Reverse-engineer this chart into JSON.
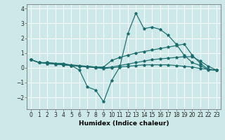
{
  "xlabel": "Humidex (Indice chaleur)",
  "xlim": [
    -0.5,
    23.5
  ],
  "ylim": [
    -2.8,
    4.3
  ],
  "xticks": [
    0,
    1,
    2,
    3,
    4,
    5,
    6,
    7,
    8,
    9,
    10,
    11,
    12,
    13,
    14,
    15,
    16,
    17,
    18,
    19,
    20,
    21,
    22,
    23
  ],
  "yticks": [
    -2,
    -1,
    0,
    1,
    2,
    3,
    4
  ],
  "bg_color": "#cce8e8",
  "line_color": "#1a6b6b",
  "grid_color": "#ffffff",
  "curves": [
    {
      "x": [
        0,
        1,
        2,
        3,
        4,
        5,
        6,
        7,
        8,
        9,
        10,
        11,
        12,
        13,
        14,
        15,
        16,
        17,
        18,
        19,
        20,
        21,
        22,
        23
      ],
      "y": [
        0.55,
        0.35,
        0.35,
        0.3,
        0.3,
        0.15,
        -0.15,
        -1.3,
        -1.5,
        -2.3,
        -0.85,
        0.05,
        2.3,
        3.7,
        2.65,
        2.75,
        2.6,
        2.2,
        1.6,
        0.85,
        0.35,
        0.15,
        -0.15,
        -0.15
      ]
    },
    {
      "x": [
        0,
        1,
        2,
        3,
        4,
        5,
        6,
        7,
        8,
        9,
        10,
        11,
        12,
        13,
        14,
        15,
        16,
        17,
        18,
        19,
        20,
        21,
        22,
        23
      ],
      "y": [
        0.55,
        0.35,
        0.35,
        0.3,
        0.25,
        0.2,
        0.15,
        0.1,
        0.05,
        0.05,
        0.5,
        0.7,
        0.85,
        1.0,
        1.1,
        1.2,
        1.3,
        1.4,
        1.5,
        1.6,
        0.85,
        0.3,
        -0.1,
        -0.15
      ]
    },
    {
      "x": [
        0,
        1,
        2,
        3,
        4,
        5,
        6,
        7,
        8,
        9,
        10,
        11,
        12,
        13,
        14,
        15,
        16,
        17,
        18,
        19,
        20,
        21,
        22,
        23
      ],
      "y": [
        0.55,
        0.35,
        0.3,
        0.25,
        0.2,
        0.15,
        0.1,
        0.1,
        0.05,
        0.0,
        0.05,
        0.15,
        0.25,
        0.35,
        0.45,
        0.55,
        0.6,
        0.65,
        0.7,
        0.75,
        0.75,
        0.45,
        0.1,
        -0.15
      ]
    },
    {
      "x": [
        0,
        1,
        2,
        3,
        4,
        5,
        6,
        7,
        8,
        9,
        10,
        11,
        12,
        13,
        14,
        15,
        16,
        17,
        18,
        19,
        20,
        21,
        22,
        23
      ],
      "y": [
        0.55,
        0.35,
        0.3,
        0.25,
        0.2,
        0.15,
        0.1,
        0.05,
        0.0,
        -0.05,
        0.0,
        0.05,
        0.1,
        0.15,
        0.2,
        0.2,
        0.2,
        0.2,
        0.15,
        0.1,
        0.05,
        -0.05,
        -0.1,
        -0.15
      ]
    }
  ]
}
